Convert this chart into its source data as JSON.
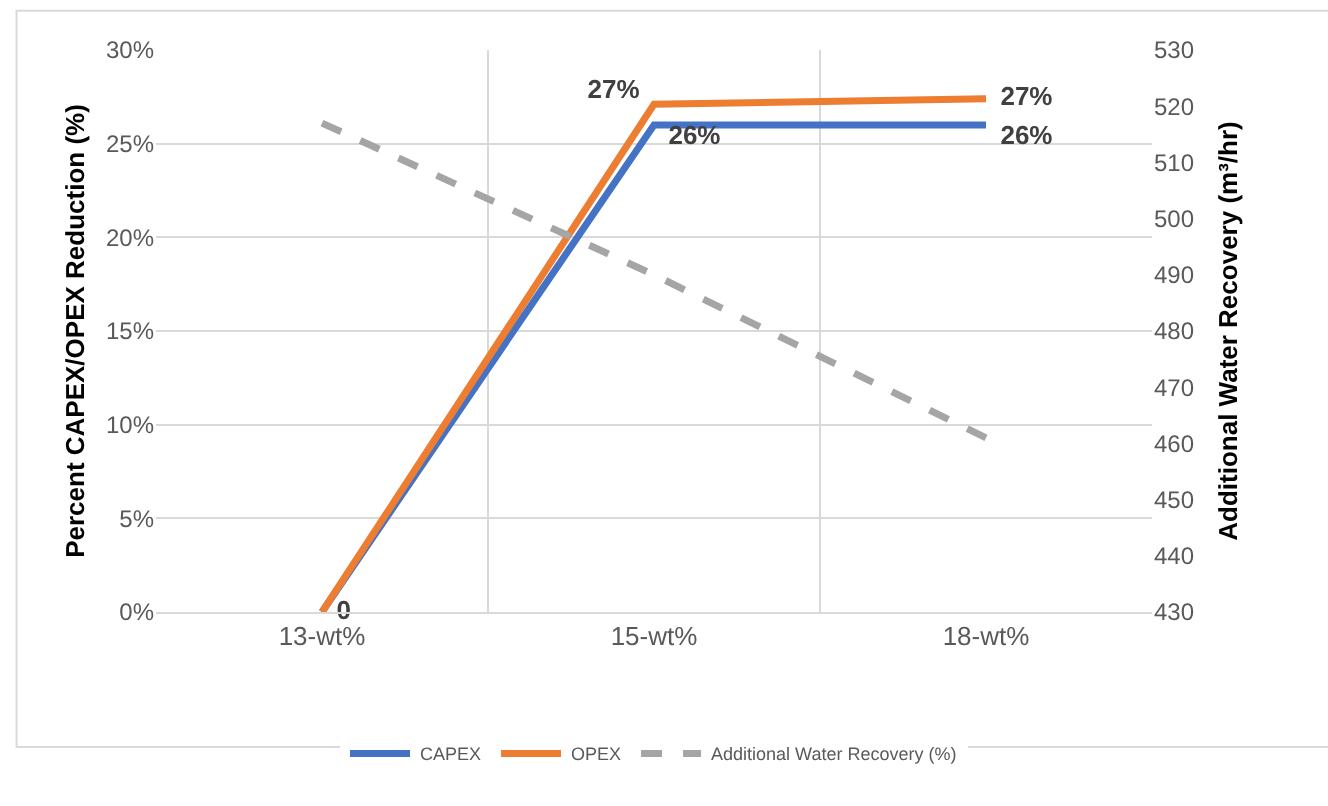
{
  "chart_data": {
    "type": "line",
    "categories": [
      "13-wt%",
      "15-wt%",
      "18-wt%"
    ],
    "ylabel": "Percent CAPEX/OPEX Reduction (%)",
    "y2label": "Additional Water Recovery (m³/hr)",
    "series": [
      {
        "name": "CAPEX",
        "color": "#4472c4",
        "values": [
          0,
          26,
          26
        ],
        "value_labels": [
          null,
          "26%",
          "26%"
        ]
      },
      {
        "name": "OPEX",
        "color": "#ed7d31",
        "values": [
          0,
          27.1,
          27.4
        ],
        "value_labels": [
          "0",
          "27%",
          "27%"
        ]
      },
      {
        "name": "Additional Water Recovery (%)",
        "color": "#a5a5a5",
        "values": [
          517,
          490,
          461
        ],
        "axis": "y2",
        "line_style": "dashed"
      }
    ],
    "ylim": [
      0,
      30
    ],
    "yticks": [
      {
        "value": 0,
        "label": "0%"
      },
      {
        "value": 5,
        "label": "5%"
      },
      {
        "value": 10,
        "label": "10%"
      },
      {
        "value": 15,
        "label": "15%"
      },
      {
        "value": 20,
        "label": "20%"
      },
      {
        "value": 25,
        "label": "25%"
      },
      {
        "value": 30,
        "label": "30%"
      }
    ],
    "y2lim": [
      430,
      530
    ],
    "y2ticks": [
      430,
      440,
      450,
      460,
      470,
      480,
      490,
      500,
      510,
      520,
      530
    ],
    "grid": true,
    "legend": "bottom",
    "marker": "none",
    "line_style": "solid"
  }
}
